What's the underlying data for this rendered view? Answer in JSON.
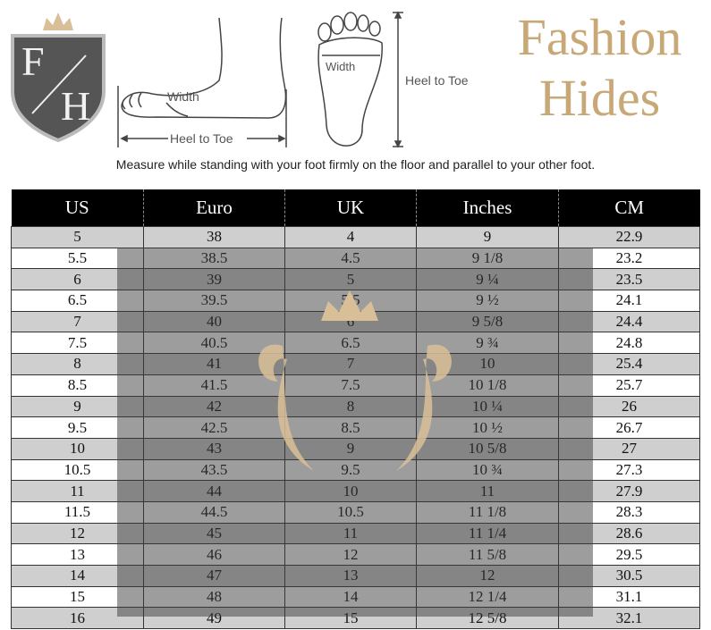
{
  "diagram": {
    "side_width_label": "Width",
    "side_length_label": "Heel to Toe",
    "top_width_label": "Width",
    "top_length_label": "Heel to Toe",
    "caption": "Measure while standing with your foot firmly on the floor and parallel to your other foot."
  },
  "table": {
    "headers": [
      "US",
      "Euro",
      "UK",
      "Inches",
      "CM"
    ],
    "rows": [
      [
        "5",
        "38",
        "4",
        "9",
        "22.9"
      ],
      [
        "5.5",
        "38.5",
        "4.5",
        "9 1/8",
        "23.2"
      ],
      [
        "6",
        "39",
        "5",
        "9 ¼",
        "23.5"
      ],
      [
        "6.5",
        "39.5",
        "5.5",
        "9 ½",
        "24.1"
      ],
      [
        "7",
        "40",
        "6",
        "9 5/8",
        "24.4"
      ],
      [
        "7.5",
        "40.5",
        "6.5",
        "9 ¾",
        "24.8"
      ],
      [
        "8",
        "41",
        "7",
        "10",
        "25.4"
      ],
      [
        "8.5",
        "41.5",
        "7.5",
        "10 1/8",
        "25.7"
      ],
      [
        "9",
        "42",
        "8",
        "10 ¼",
        "26"
      ],
      [
        "9.5",
        "42.5",
        "8.5",
        "10 ½",
        "26.7"
      ],
      [
        "10",
        "43",
        "9",
        "10 5/8",
        "27"
      ],
      [
        "10.5",
        "43.5",
        "9.5",
        "10 ¾",
        "27.3"
      ],
      [
        "11",
        "44",
        "10",
        "11",
        "27.9"
      ],
      [
        "11.5",
        "44.5",
        "10.5",
        "11 1/8",
        "28.3"
      ],
      [
        "12",
        "45",
        "11",
        "11 1/4",
        "28.6"
      ],
      [
        "13",
        "46",
        "12",
        "11 5/8",
        "29.5"
      ],
      [
        "14",
        "47",
        "13",
        "12",
        "30.5"
      ],
      [
        "15",
        "48",
        "14",
        "12 1/4",
        "31.1"
      ],
      [
        "16",
        "49",
        "15",
        "12 5/8",
        "32.1"
      ]
    ]
  },
  "watermark": {
    "monogram_top": "F",
    "monogram_bottom": "H",
    "brand": "Fashion Hides",
    "gold": "#d9bf98"
  }
}
